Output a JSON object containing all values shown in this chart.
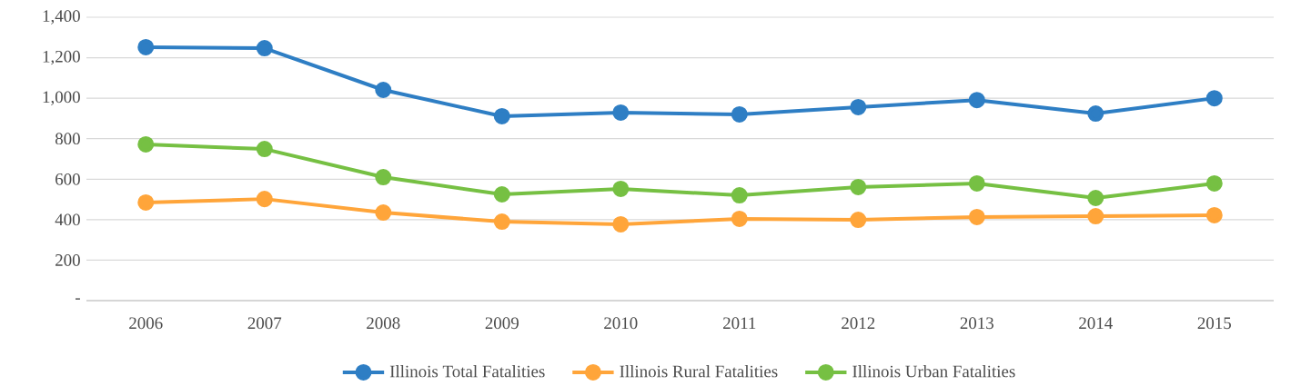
{
  "chart_data": {
    "type": "line",
    "categories": [
      "2006",
      "2007",
      "2008",
      "2009",
      "2010",
      "2011",
      "2012",
      "2013",
      "2014",
      "2015"
    ],
    "series": [
      {
        "name": "Illinois Total Fatalities",
        "color": "#2e7ec4",
        "values": [
          1252,
          1247,
          1041,
          911,
          929,
          920,
          956,
          991,
          924,
          1000
        ]
      },
      {
        "name": "Illinois Rural Fatalities",
        "color": "#ffa53a",
        "values": [
          485,
          502,
          435,
          390,
          377,
          404,
          399,
          413,
          417,
          422
        ]
      },
      {
        "name": "Illinois Urban Fatalities",
        "color": "#76c043",
        "values": [
          772,
          749,
          610,
          525,
          552,
          520,
          561,
          579,
          507,
          579
        ]
      }
    ],
    "ylim": [
      0,
      1400
    ],
    "yticks": [
      {
        "value": 0,
        "label": "-"
      },
      {
        "value": 200,
        "label": "200"
      },
      {
        "value": 400,
        "label": "400"
      },
      {
        "value": 600,
        "label": "600"
      },
      {
        "value": 800,
        "label": "800"
      },
      {
        "value": 1000,
        "label": "1,000"
      },
      {
        "value": 1200,
        "label": "1,200"
      },
      {
        "value": 1400,
        "label": "1,400"
      }
    ],
    "grid": "y",
    "legend": "bottom",
    "marker": "circle"
  }
}
